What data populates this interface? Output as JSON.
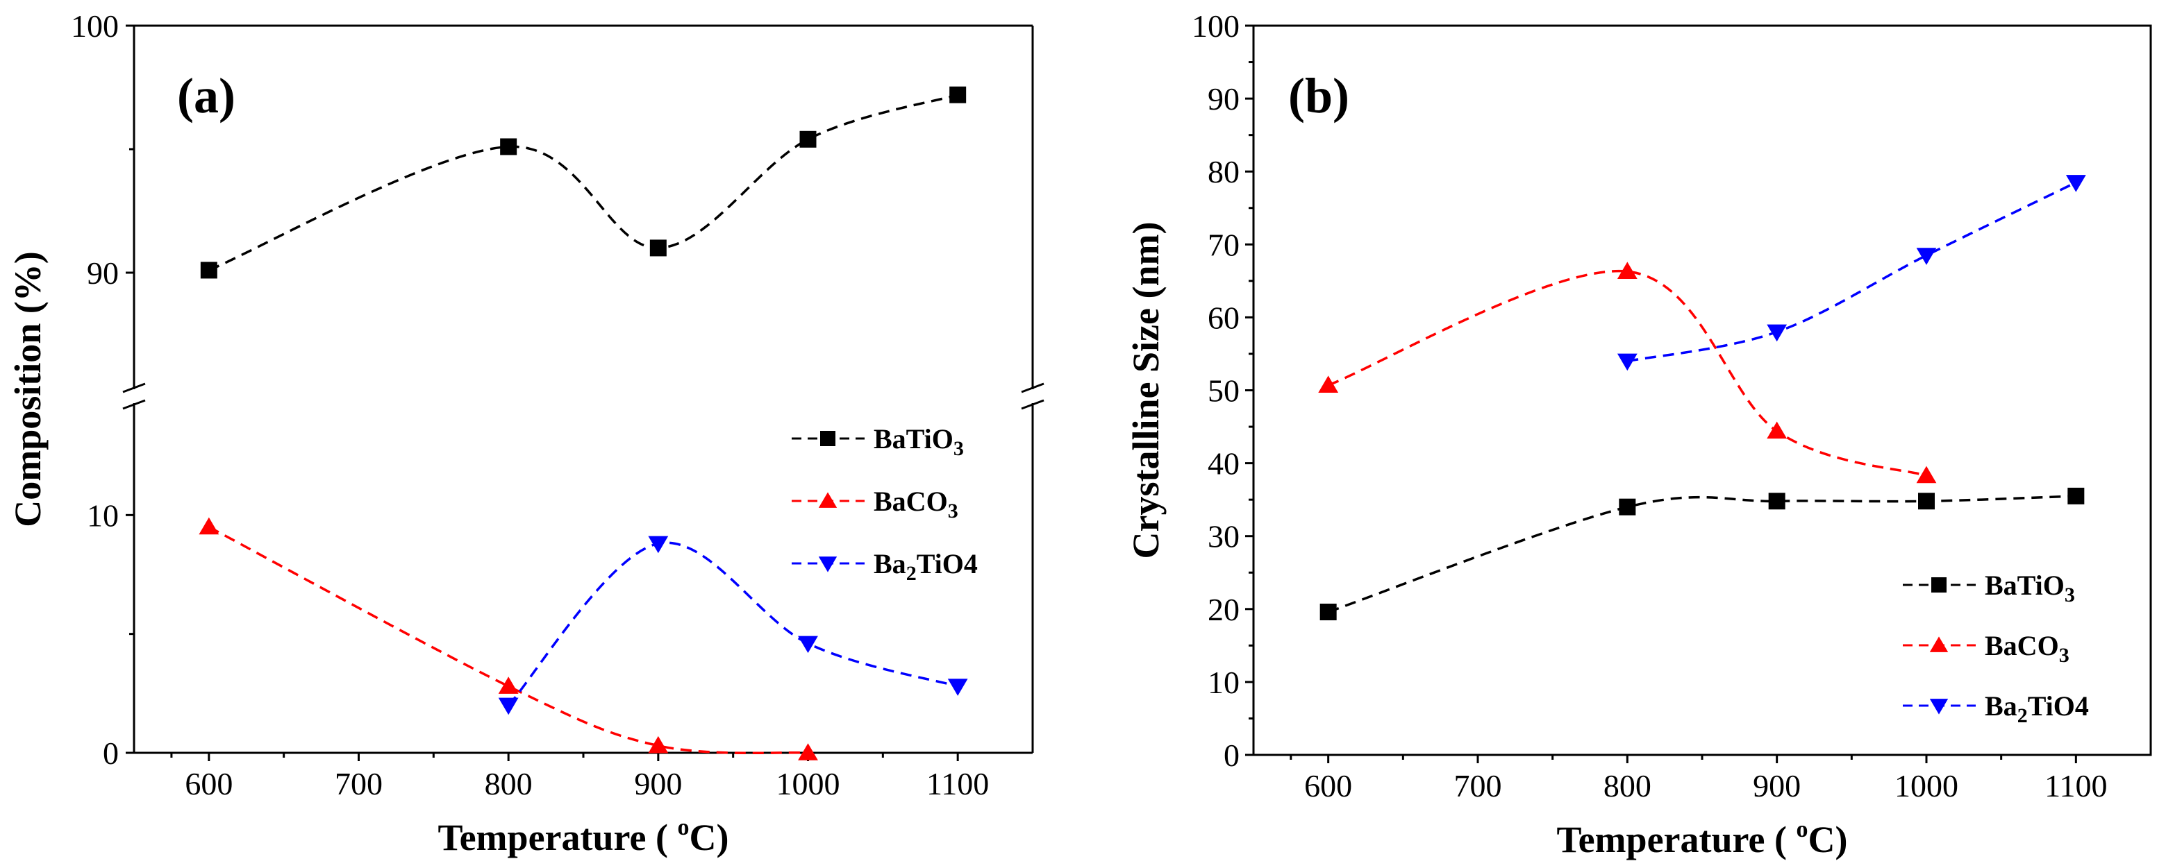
{
  "chart_data": [
    {
      "type": "scatter",
      "panel_label": "(a)",
      "xlabel": "Temperature ( oC)",
      "xlabel_parts": {
        "main": "Temperature ( ",
        "sup": "o",
        "unit": "C)"
      },
      "ylabel": "Composition (%)",
      "xlim": [
        550,
        1150
      ],
      "x_ticks": [
        "600",
        "700",
        "800",
        "900",
        "1000",
        "1100"
      ],
      "y_break": {
        "lower_range": [
          0,
          15
        ],
        "upper_range": [
          85,
          100
        ]
      },
      "y_ticks": [
        "0",
        "10",
        "90",
        "100"
      ],
      "legend_position": "center-right",
      "series": [
        {
          "name": "BaTiO3",
          "label_parts": [
            "BaTiO",
            "3",
            ""
          ],
          "color": "#000000",
          "marker": "square",
          "line": "dashed-spline",
          "x": [
            600,
            800,
            900,
            1000,
            1100
          ],
          "y": [
            90.1,
            95.1,
            91.0,
            95.4,
            97.2
          ]
        },
        {
          "name": "BaCO3",
          "label_parts": [
            "BaCO",
            "3",
            ""
          ],
          "color": "#ff0000",
          "marker": "triangle-up",
          "line": "dashed-spline",
          "x": [
            600,
            800,
            900,
            1000
          ],
          "y": [
            9.5,
            2.8,
            0.3,
            0.0
          ]
        },
        {
          "name": "Ba2TiO4",
          "label_parts": [
            "Ba",
            "2",
            "TiO4"
          ],
          "color": "#0000ff",
          "marker": "triangle-down",
          "line": "dashed-spline",
          "x": [
            800,
            900,
            1000,
            1100
          ],
          "y": [
            2.0,
            8.8,
            4.6,
            2.8
          ]
        }
      ]
    },
    {
      "type": "scatter",
      "panel_label": "(b)",
      "xlabel": "Temperature ( oC)",
      "xlabel_parts": {
        "main": "Temperature ( ",
        "sup": "o",
        "unit": "C)"
      },
      "ylabel": "Crystalline Size (nm)",
      "xlim": [
        550,
        1150
      ],
      "ylim": [
        0,
        100
      ],
      "x_ticks": [
        "600",
        "700",
        "800",
        "900",
        "1000",
        "1100"
      ],
      "y_ticks": [
        "0",
        "10",
        "20",
        "30",
        "40",
        "50",
        "60",
        "70",
        "80",
        "90",
        "100"
      ],
      "legend_position": "bottom-right",
      "series": [
        {
          "name": "BaTiO3",
          "label_parts": [
            "BaTiO",
            "3",
            ""
          ],
          "color": "#000000",
          "marker": "square",
          "line": "dashed-spline",
          "x": [
            600,
            800,
            900,
            1000,
            1100
          ],
          "y": [
            19.6,
            34.0,
            34.8,
            34.8,
            35.5
          ]
        },
        {
          "name": "BaCO3",
          "label_parts": [
            "BaCO",
            "3",
            ""
          ],
          "color": "#ff0000",
          "marker": "triangle-up",
          "line": "dashed-spline",
          "x": [
            600,
            800,
            900,
            1000
          ],
          "y": [
            50.7,
            66.3,
            44.4,
            38.3
          ]
        },
        {
          "name": "Ba2TiO4",
          "label_parts": [
            "Ba",
            "2",
            "TiO4"
          ],
          "color": "#0000ff",
          "marker": "triangle-down",
          "line": "dashed-spline",
          "x": [
            800,
            900,
            1000,
            1100
          ],
          "y": [
            54.0,
            58.0,
            68.5,
            78.5
          ]
        }
      ]
    }
  ]
}
